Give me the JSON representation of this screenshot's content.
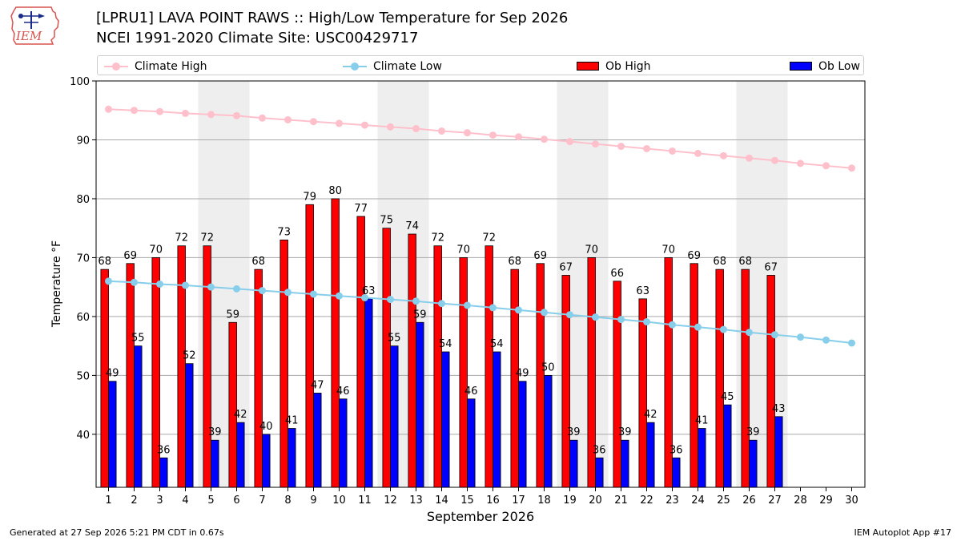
{
  "header": {
    "logo_text": "IEM",
    "title_line1": "[LPRU1] LAVA POINT RAWS :: High/Low Temperature for Sep 2026",
    "title_line2": "NCEI 1991-2020 Climate Site: USC00429717"
  },
  "legend": {
    "placement": "top",
    "climate_high": "Climate High",
    "climate_low": "Climate Low",
    "ob_high": "Ob High",
    "ob_low": "Ob Low"
  },
  "colors": {
    "climate_high": "#ffc0cb",
    "climate_low": "#87ceeb",
    "ob_high": "#ff0000",
    "ob_low": "#0000ff",
    "weekend_band": "#eeeeee",
    "grid": "#aaaaaa"
  },
  "chart_data": {
    "type": "bar",
    "title": "[LPRU1] LAVA POINT RAWS :: High/Low Temperature for Sep 2026",
    "subtitle": "NCEI 1991-2020 Climate Site: USC00429717",
    "xlabel": "September 2026",
    "ylabel": "Temperature °F",
    "ylim": [
      31,
      100
    ],
    "yticks": [
      40,
      50,
      60,
      70,
      80,
      90,
      100
    ],
    "grid": true,
    "categories": [
      "1",
      "2",
      "3",
      "4",
      "5",
      "6",
      "7",
      "8",
      "9",
      "10",
      "11",
      "12",
      "13",
      "14",
      "15",
      "16",
      "17",
      "18",
      "19",
      "20",
      "21",
      "22",
      "23",
      "24",
      "25",
      "26",
      "27",
      "28",
      "29",
      "30"
    ],
    "shaded_days": [
      5,
      6,
      12,
      13,
      19,
      20,
      26,
      27
    ],
    "series": [
      {
        "name": "Ob High",
        "kind": "bar",
        "values": [
          68,
          69,
          70,
          72,
          72,
          59,
          68,
          73,
          79,
          80,
          77,
          75,
          74,
          72,
          70,
          72,
          68,
          69,
          67,
          70,
          66,
          63,
          70,
          69,
          68,
          68,
          67,
          null,
          null,
          null
        ]
      },
      {
        "name": "Ob Low",
        "kind": "bar",
        "values": [
          49,
          55,
          36,
          52,
          39,
          42,
          40,
          41,
          47,
          46,
          63,
          55,
          59,
          54,
          46,
          54,
          49,
          50,
          39,
          36,
          39,
          42,
          36,
          41,
          45,
          39,
          43,
          null,
          null,
          null
        ]
      },
      {
        "name": "Climate High",
        "kind": "line",
        "values": [
          95.2,
          95.0,
          94.8,
          94.5,
          94.3,
          94.1,
          93.7,
          93.4,
          93.1,
          92.8,
          92.5,
          92.2,
          91.9,
          91.5,
          91.2,
          90.8,
          90.5,
          90.1,
          89.7,
          89.3,
          88.9,
          88.5,
          88.1,
          87.7,
          87.3,
          86.9,
          86.5,
          86.0,
          85.6,
          85.2
        ]
      },
      {
        "name": "Climate Low",
        "kind": "line",
        "values": [
          66.0,
          65.8,
          65.5,
          65.3,
          65.0,
          64.7,
          64.4,
          64.1,
          63.8,
          63.5,
          63.2,
          62.9,
          62.6,
          62.2,
          61.9,
          61.5,
          61.1,
          60.7,
          60.3,
          59.9,
          59.5,
          59.1,
          58.6,
          58.2,
          57.8,
          57.3,
          56.9,
          56.5,
          56.0,
          55.5
        ]
      }
    ]
  },
  "footer": {
    "generated": "Generated at 27 Sep 2026 5:21 PM CDT in 0.67s",
    "app": "IEM Autoplot App #17"
  }
}
